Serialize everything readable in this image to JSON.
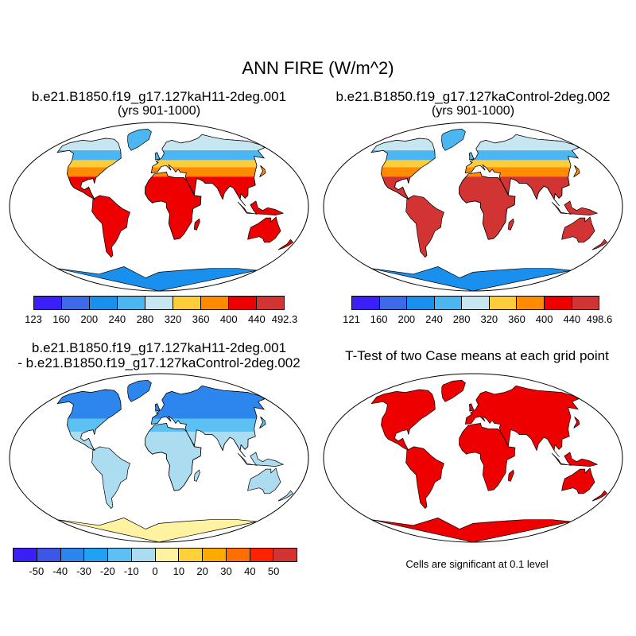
{
  "figure": {
    "title": "ANN FIRE (W/m^2)"
  },
  "panels": [
    {
      "title": "b.e21.B1850.f19_g17.127kaH11-2deg.001",
      "subtitle": "(yrs 901-1000)",
      "map_type": "absolute",
      "colorbar": {
        "colors": [
          "#3a1ff6",
          "#3d6ae8",
          "#1a90ee",
          "#4cb6f0",
          "#c6e6f2",
          "#ffcc3a",
          "#ff8c00",
          "#ee0000",
          "#d23333"
        ],
        "labels": [
          "123",
          "160",
          "200",
          "240",
          "280",
          "320",
          "360",
          "400",
          "440",
          "492.3"
        ]
      }
    },
    {
      "title": "b.e21.B1850.f19_g17.127kaControl-2deg.002",
      "subtitle": "(yrs 901-1000)",
      "map_type": "absolute",
      "colorbar": {
        "colors": [
          "#3a1ff6",
          "#3d6ae8",
          "#1a90ee",
          "#4cb6f0",
          "#c6e6f2",
          "#ffcc3a",
          "#ff8c00",
          "#ee0000",
          "#d23333"
        ],
        "labels": [
          "121",
          "160",
          "200",
          "240",
          "280",
          "320",
          "360",
          "400",
          "440",
          "498.6"
        ]
      }
    },
    {
      "title": "b.e21.B1850.f19_g17.127kaH11-2deg.001",
      "subtitle": "- b.e21.B1850.f19_g17.127kaControl-2deg.002",
      "map_type": "difference",
      "colorbar": {
        "colors": [
          "#3a1ff6",
          "#3d56e6",
          "#2d86ee",
          "#1fa2f2",
          "#5cc0f2",
          "#acdcef",
          "#fff2a0",
          "#ffd23a",
          "#ffaa00",
          "#ff6e00",
          "#ff2200",
          "#d23333"
        ],
        "labels": [
          "-50",
          "-40",
          "-30",
          "-20",
          "-10",
          "0",
          "10",
          "20",
          "30",
          "40",
          "50"
        ]
      }
    },
    {
      "title": "T-Test of two Case means at each grid point",
      "map_type": "significance",
      "note": "Cells are significant at 0.1 level"
    }
  ]
}
